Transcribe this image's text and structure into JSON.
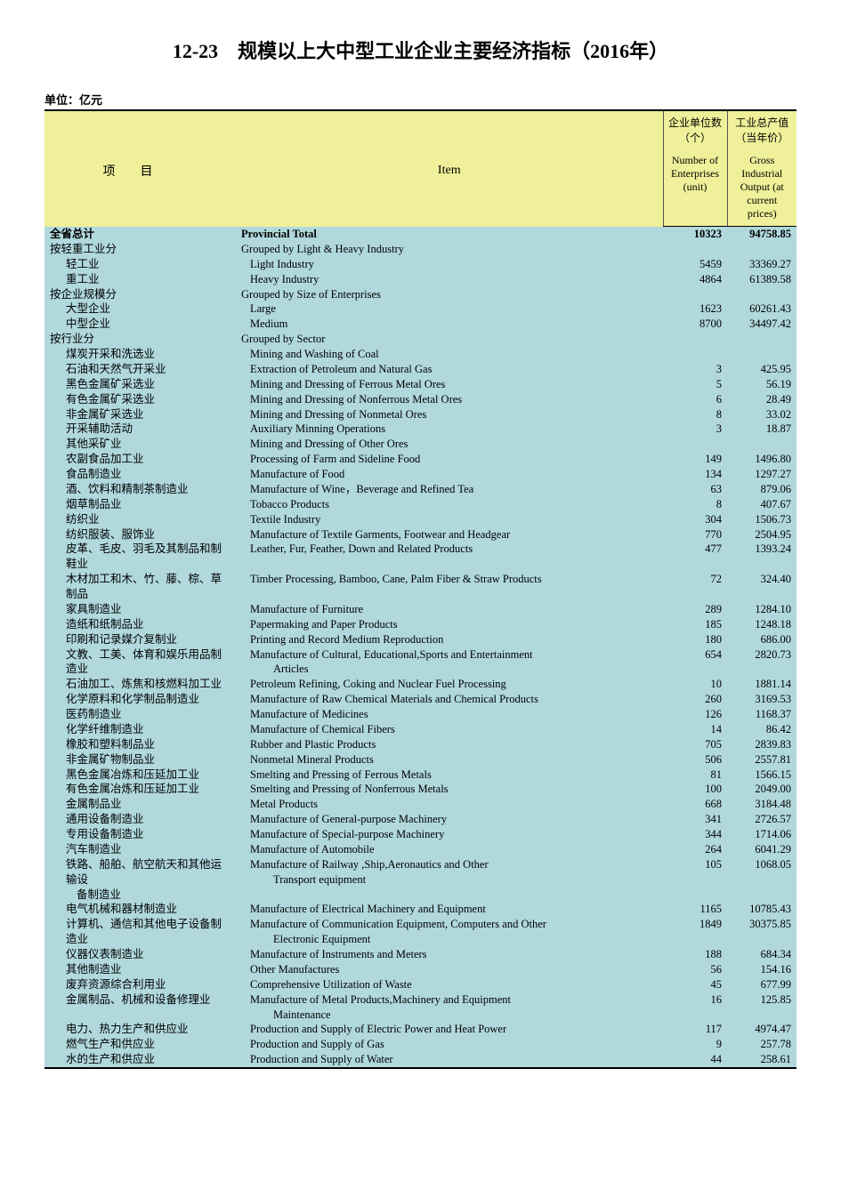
{
  "title": "12-23　规模以上大中型工业企业主要经济指标（2016年）",
  "unit": "单位：亿元",
  "headers": {
    "item_cn": "项目",
    "item_en": "Item",
    "col1_cn": "企业单位数（个）",
    "col1_en": "Number of Enterprises (unit)",
    "col2_cn": "工业总产值（当年价）",
    "col2_en": "Gross Industrial Output (at current prices)"
  },
  "rows": [
    {
      "cn": "全省总计",
      "en": "Provincial Total",
      "n": "10323",
      "v": "94758.85",
      "bold": true,
      "ind": 0,
      "inden": 0
    },
    {
      "cn": "按轻重工业分",
      "en": "Grouped by Light & Heavy Industry",
      "n": "",
      "v": "",
      "ind": 0,
      "inden": 0
    },
    {
      "cn": "轻工业",
      "en": "Light Industry",
      "n": "5459",
      "v": "33369.27",
      "ind": 1,
      "inden": 1
    },
    {
      "cn": "重工业",
      "en": "Heavy Industry",
      "n": "4864",
      "v": "61389.58",
      "ind": 1,
      "inden": 1
    },
    {
      "cn": "按企业规模分",
      "en": "Grouped by Size of Enterprises",
      "n": "",
      "v": "",
      "ind": 0,
      "inden": 0
    },
    {
      "cn": "大型企业",
      "en": "Large",
      "n": "1623",
      "v": "60261.43",
      "ind": 1,
      "inden": 1
    },
    {
      "cn": "中型企业",
      "en": "Medium",
      "n": "8700",
      "v": "34497.42",
      "ind": 1,
      "inden": 1
    },
    {
      "cn": "按行业分",
      "en": "Grouped by Sector",
      "n": "",
      "v": "",
      "ind": 0,
      "inden": 0
    },
    {
      "cn": "煤炭开采和洗选业",
      "en": "Mining and Washing of Coal",
      "n": "",
      "v": "",
      "ind": 1,
      "inden": 1
    },
    {
      "cn": "石油和天然气开采业",
      "en": "Extraction of Petroleum and Natural Gas",
      "n": "3",
      "v": "425.95",
      "ind": 1,
      "inden": 1
    },
    {
      "cn": "黑色金属矿采选业",
      "en": "Mining and Dressing of Ferrous Metal Ores",
      "n": "5",
      "v": "56.19",
      "ind": 1,
      "inden": 1
    },
    {
      "cn": "有色金属矿采选业",
      "en": "Mining and Dressing of Nonferrous Metal Ores",
      "n": "6",
      "v": "28.49",
      "ind": 1,
      "inden": 1
    },
    {
      "cn": "非金属矿采选业",
      "en": "Mining and Dressing of Nonmetal Ores",
      "n": "8",
      "v": "33.02",
      "ind": 1,
      "inden": 1
    },
    {
      "cn": "开采辅助活动",
      "en": "Auxiliary Minning Operations",
      "n": "3",
      "v": "18.87",
      "ind": 1,
      "inden": 1
    },
    {
      "cn": "其他采矿业",
      "en": "Mining and Dressing of Other Ores",
      "n": "",
      "v": "",
      "ind": 1,
      "inden": 1
    },
    {
      "cn": "农副食品加工业",
      "en": "Processing of Farm and Sideline Food",
      "n": "149",
      "v": "1496.80",
      "ind": 1,
      "inden": 1
    },
    {
      "cn": "食品制造业",
      "en": "Manufacture of Food",
      "n": "134",
      "v": "1297.27",
      "ind": 1,
      "inden": 1
    },
    {
      "cn": "酒、饮料和精制茶制造业",
      "en": "Manufacture of Wine，Beverage and Refined Tea",
      "n": "63",
      "v": "879.06",
      "ind": 1,
      "inden": 1
    },
    {
      "cn": "烟草制品业",
      "en": "Tobacco Products",
      "n": "8",
      "v": "407.67",
      "ind": 1,
      "inden": 1
    },
    {
      "cn": "纺织业",
      "en": "Textile Industry",
      "n": "304",
      "v": "1506.73",
      "ind": 1,
      "inden": 1
    },
    {
      "cn": "纺织服装、服饰业",
      "en": "Manufacture of Textile Garments, Footwear and Headgear",
      "n": "770",
      "v": "2504.95",
      "ind": 1,
      "inden": 1
    },
    {
      "cn": "皮革、毛皮、羽毛及其制品和制鞋业",
      "en": "Leather, Fur, Feather, Down and Related Products",
      "n": "477",
      "v": "1393.24",
      "ind": 1,
      "inden": 1
    },
    {
      "cn": "木材加工和木、竹、藤、棕、草制品",
      "en": "Timber Processing, Bamboo, Cane, Palm Fiber & Straw Products",
      "n": "72",
      "v": "324.40",
      "ind": 1,
      "inden": 1
    },
    {
      "cn": "家具制造业",
      "en": "Manufacture of Furniture",
      "n": "289",
      "v": "1284.10",
      "ind": 1,
      "inden": 1
    },
    {
      "cn": "造纸和纸制品业",
      "en": "Papermaking and Paper Products",
      "n": "185",
      "v": "1248.18",
      "ind": 1,
      "inden": 1
    },
    {
      "cn": "印刷和记录媒介复制业",
      "en": "Printing and Record Medium Reproduction",
      "n": "180",
      "v": "686.00",
      "ind": 1,
      "inden": 1
    },
    {
      "cn": "文教、工美、体育和娱乐用品制造业",
      "en": "Manufacture of Cultural, Educational,Sports and Entertainment",
      "en2": "Articles",
      "n": "654",
      "v": "2820.73",
      "ind": 1,
      "inden": 1
    },
    {
      "cn": "石油加工、炼焦和核燃料加工业",
      "en": "Petroleum Refining, Coking and Nuclear Fuel Processing",
      "n": "10",
      "v": "1881.14",
      "ind": 1,
      "inden": 1
    },
    {
      "cn": "化学原料和化学制品制造业",
      "en": "Manufacture of Raw Chemical Materials and Chemical Products",
      "n": "260",
      "v": "3169.53",
      "ind": 1,
      "inden": 1
    },
    {
      "cn": "医药制造业",
      "en": "Manufacture of Medicines",
      "n": "126",
      "v": "1168.37",
      "ind": 1,
      "inden": 1
    },
    {
      "cn": "化学纤维制造业",
      "en": "Manufacture of Chemical Fibers",
      "n": "14",
      "v": "86.42",
      "ind": 1,
      "inden": 1
    },
    {
      "cn": "橡胶和塑料制品业",
      "en": "Rubber and Plastic Products",
      "n": "705",
      "v": "2839.83",
      "ind": 1,
      "inden": 1
    },
    {
      "cn": "非金属矿物制品业",
      "en": "Nonmetal Mineral Products",
      "n": "506",
      "v": "2557.81",
      "ind": 1,
      "inden": 1
    },
    {
      "cn": "黑色金属冶炼和压延加工业",
      "en": "Smelting and Pressing of Ferrous Metals",
      "n": "81",
      "v": "1566.15",
      "ind": 1,
      "inden": 1
    },
    {
      "cn": "有色金属冶炼和压延加工业",
      "en": "Smelting and Pressing of Nonferrous Metals",
      "n": "100",
      "v": "2049.00",
      "ind": 1,
      "inden": 1
    },
    {
      "cn": "金属制品业",
      "en": "Metal Products",
      "n": "668",
      "v": "3184.48",
      "ind": 1,
      "inden": 1
    },
    {
      "cn": "通用设备制造业",
      "en": "Manufacture of General-purpose Machinery",
      "n": "341",
      "v": "2726.57",
      "ind": 1,
      "inden": 1
    },
    {
      "cn": "专用设备制造业",
      "en": "Manufacture of Special-purpose Machinery",
      "n": "344",
      "v": "1714.06",
      "ind": 1,
      "inden": 1
    },
    {
      "cn": "汽车制造业",
      "en": "Manufacture of Automobile",
      "n": "264",
      "v": "6041.29",
      "ind": 1,
      "inden": 1
    },
    {
      "cn": "铁路、船舶、航空航天和其他运输设",
      "cn2": "备制造业",
      "en": "Manufacture of Railway ,Ship,Aeronautics and Other",
      "en2": "Transport equipment",
      "n": "105",
      "v": "1068.05",
      "ind": 1,
      "inden": 1
    },
    {
      "cn": "电气机械和器材制造业",
      "en": "Manufacture of Electrical Machinery and Equipment",
      "n": "1165",
      "v": "10785.43",
      "ind": 1,
      "inden": 1
    },
    {
      "cn": "计算机、通信和其他电子设备制造业",
      "en": "Manufacture of Communication Equipment, Computers and Other",
      "en2": "Electronic Equipment",
      "n": "1849",
      "v": "30375.85",
      "ind": 1,
      "inden": 1
    },
    {
      "cn": "仪器仪表制造业",
      "en": "Manufacture of Instruments and Meters",
      "n": "188",
      "v": "684.34",
      "ind": 1,
      "inden": 1
    },
    {
      "cn": "其他制造业",
      "en": "Other Manufactures",
      "n": "56",
      "v": "154.16",
      "ind": 1,
      "inden": 1
    },
    {
      "cn": "废弃资源综合利用业",
      "en": "Comprehensive Utilization of Waste",
      "n": "45",
      "v": "677.99",
      "ind": 1,
      "inden": 1
    },
    {
      "cn": "金属制品、机械和设备修理业",
      "en": "Manufacture of  Metal Products,Machinery and Equipment",
      "en2": "Maintenance",
      "n": "16",
      "v": "125.85",
      "ind": 1,
      "inden": 1
    },
    {
      "cn": "电力、热力生产和供应业",
      "en": "Production and Supply of Electric Power and Heat Power",
      "n": "117",
      "v": "4974.47",
      "ind": 1,
      "inden": 1
    },
    {
      "cn": "燃气生产和供应业",
      "en": "Production and Supply of Gas",
      "n": "9",
      "v": "257.78",
      "ind": 1,
      "inden": 1
    },
    {
      "cn": "水的生产和供应业",
      "en": "Production and Supply of Water",
      "n": "44",
      "v": "258.61",
      "ind": 1,
      "inden": 1
    }
  ]
}
